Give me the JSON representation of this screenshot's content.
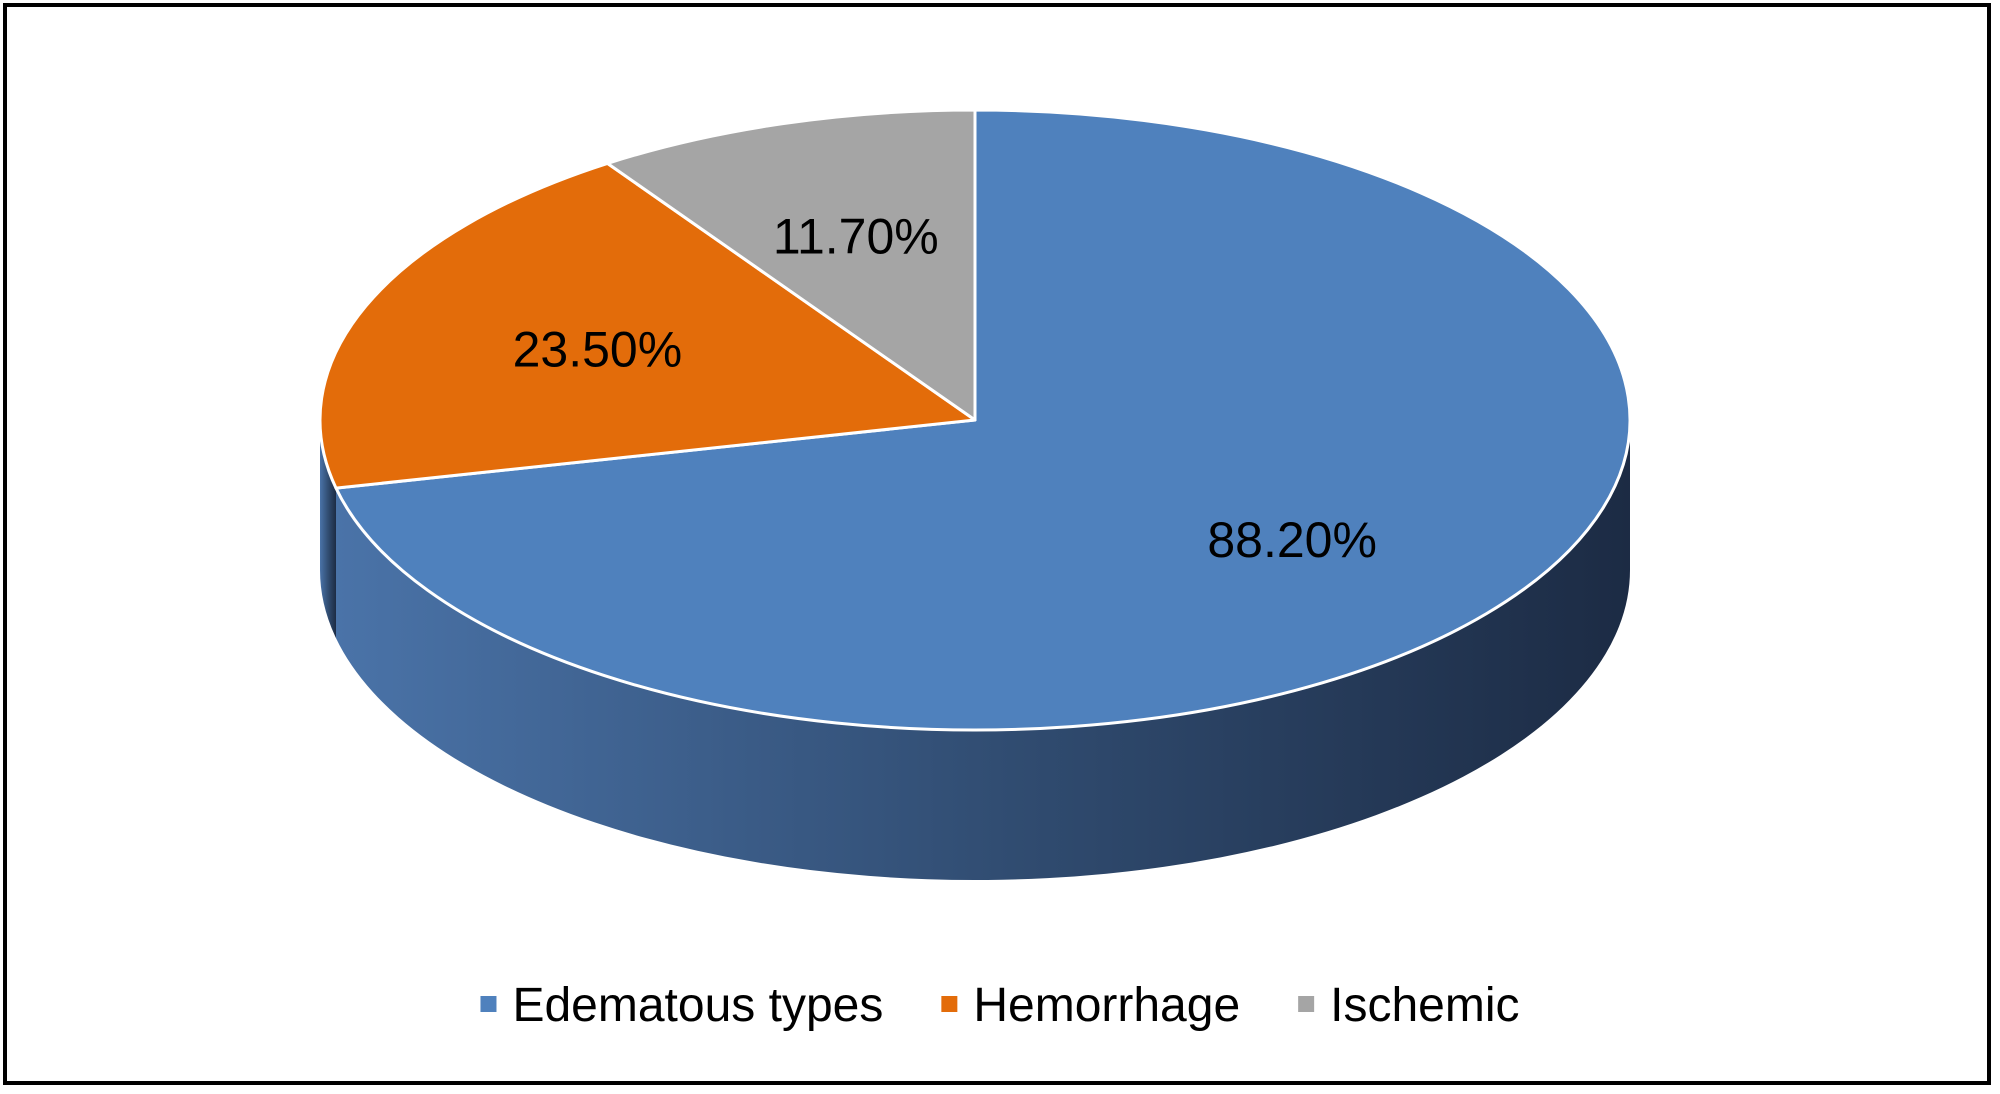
{
  "chart_data": {
    "type": "pie",
    "style": "3d",
    "categories": [
      "Edematous types",
      "Hemorrhage",
      "Ischemic"
    ],
    "values": [
      88.2,
      23.5,
      11.7
    ],
    "labels": [
      "88.20%",
      "23.50%",
      "11.70%"
    ],
    "colors": [
      "#4f81bd",
      "#e36c0a",
      "#a5a5a5"
    ],
    "legend_position": "bottom"
  }
}
